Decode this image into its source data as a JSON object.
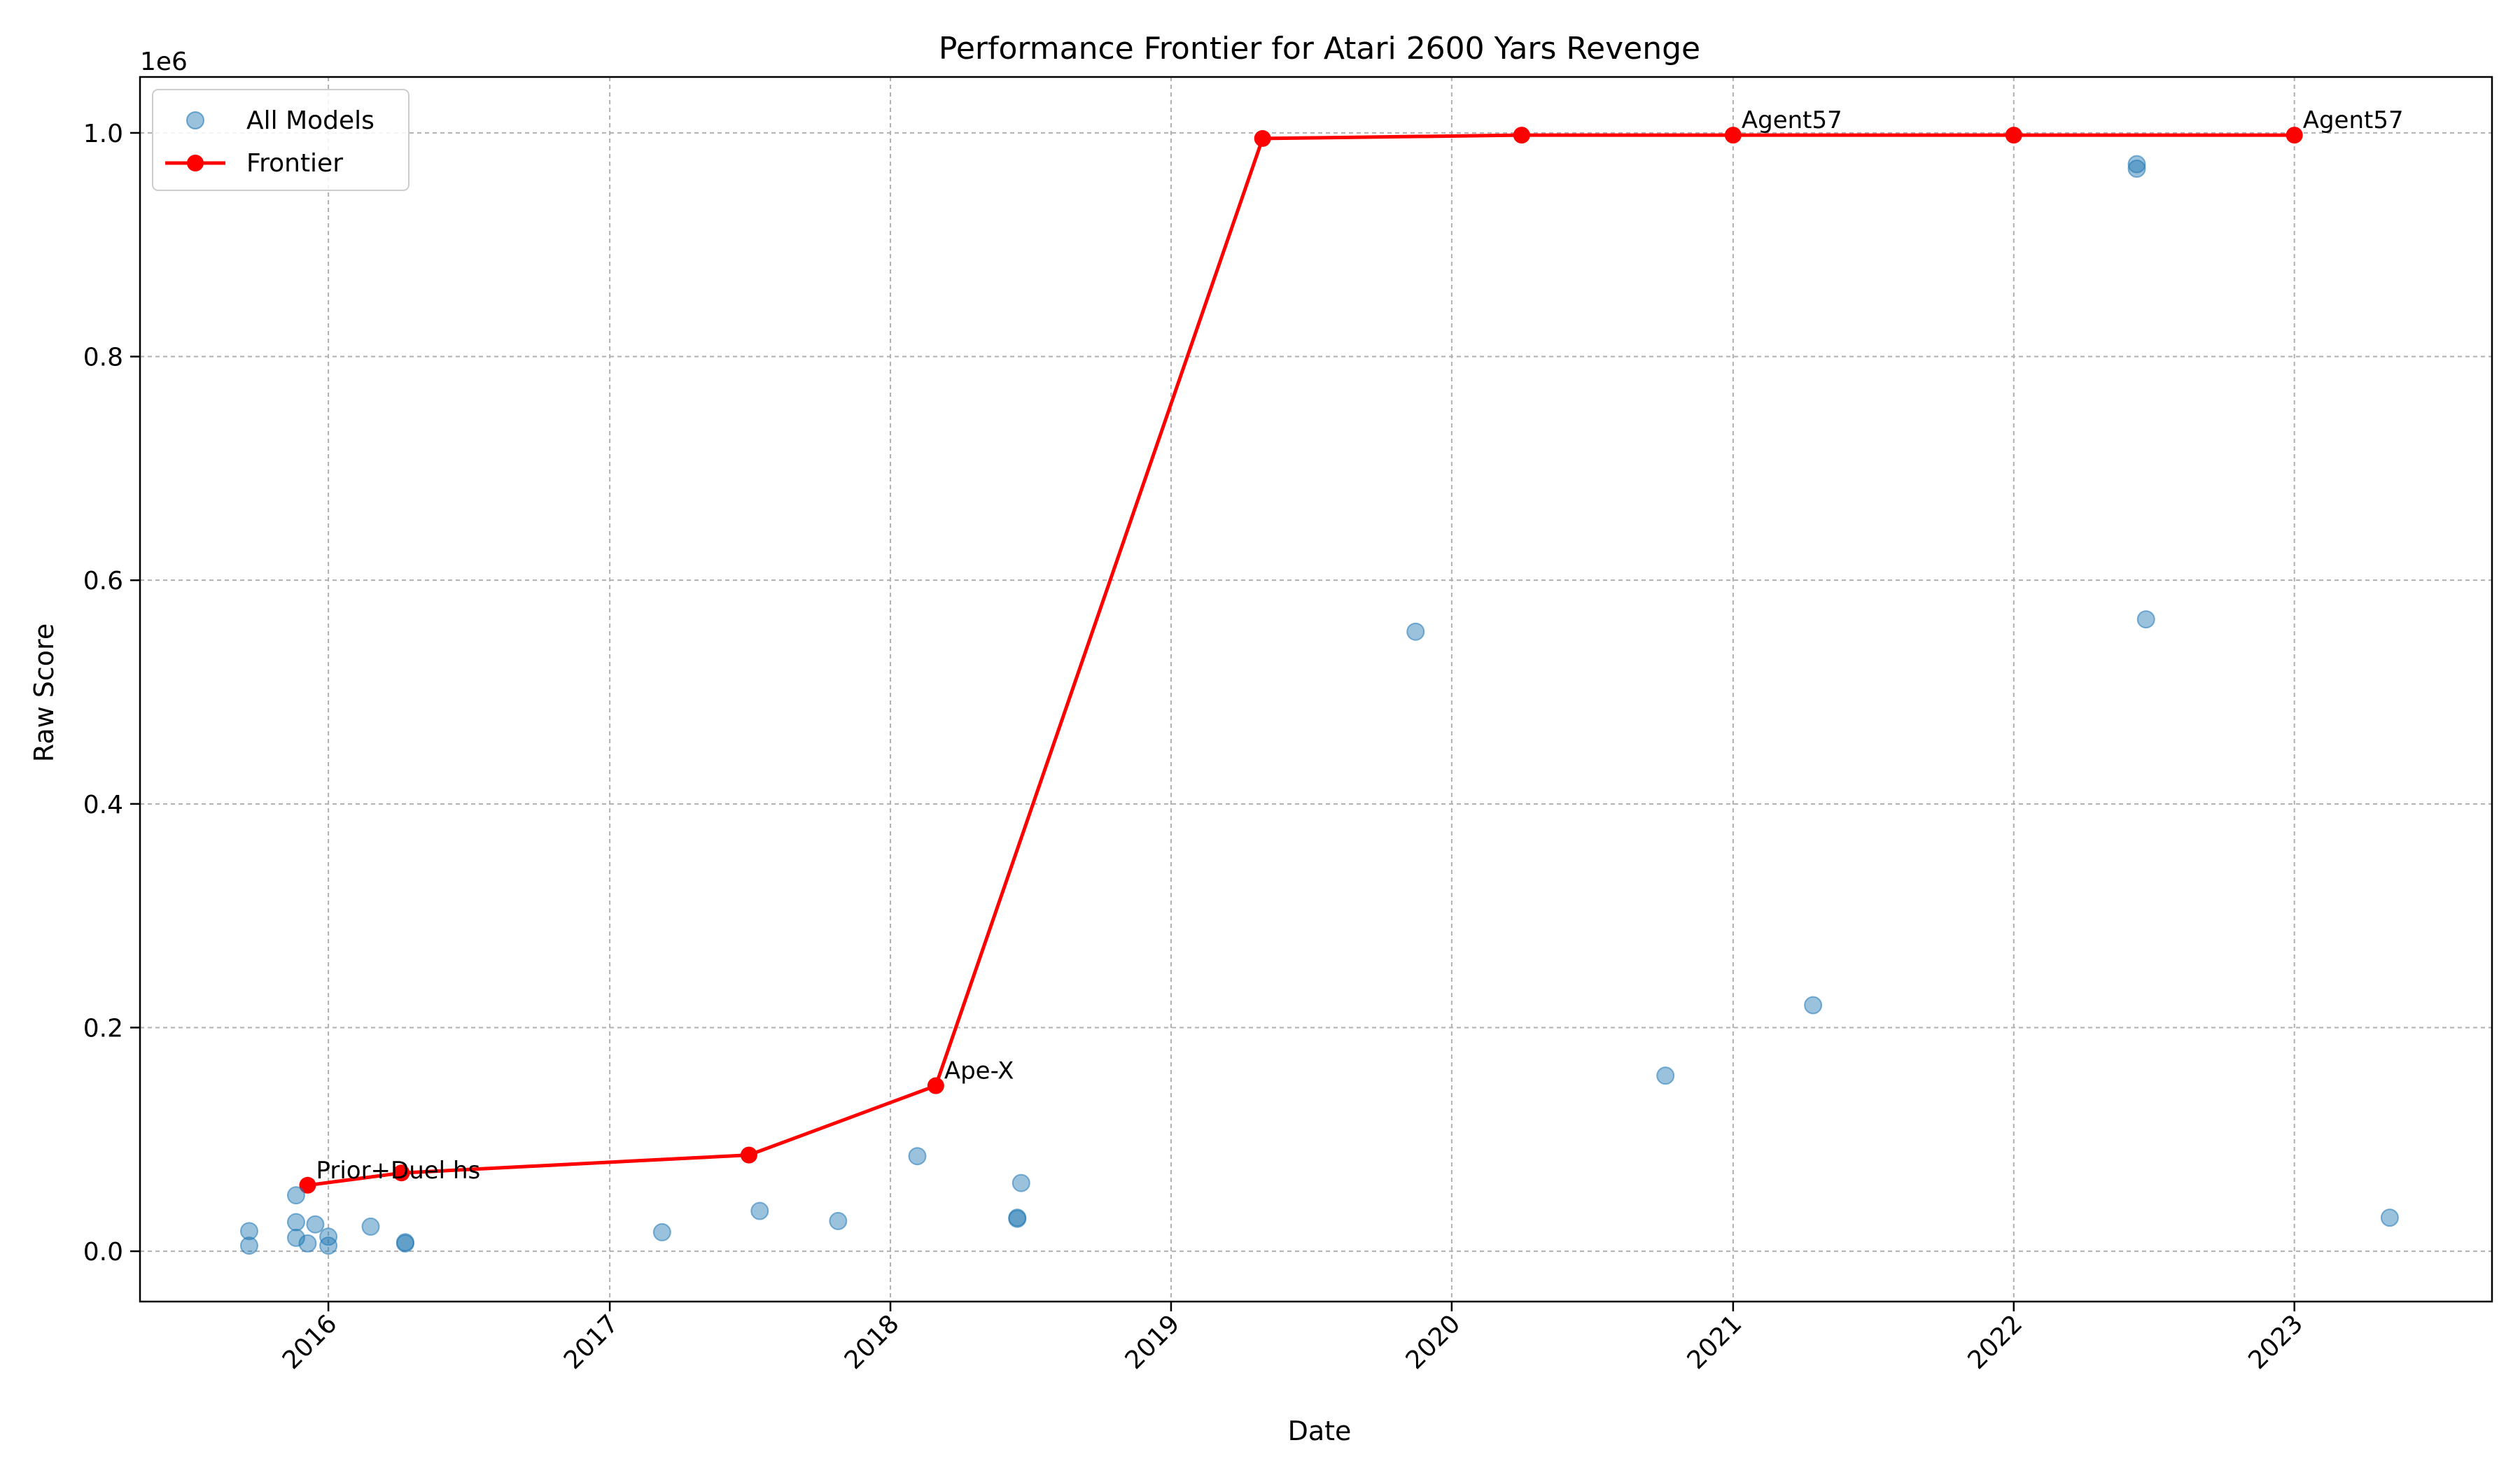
{
  "chart_data": {
    "type": "scatter",
    "title": "Performance Frontier for Atari 2600 Yars Revenge",
    "xlabel": "Date",
    "ylabel": "Raw Score",
    "y_offset_label": "1e6",
    "xlim": [
      "2015-05-01",
      "2023-09-15"
    ],
    "ylim": [
      -45000,
      1050000
    ],
    "x_ticks": [
      "2016-01-01",
      "2017-01-01",
      "2018-01-01",
      "2019-01-01",
      "2020-01-01",
      "2021-01-01",
      "2022-01-01",
      "2023-01-01"
    ],
    "x_tick_labels": [
      "2016",
      "2017",
      "2018",
      "2019",
      "2020",
      "2021",
      "2022",
      "2023"
    ],
    "y_ticks": [
      0,
      200000,
      400000,
      600000,
      800000,
      1000000
    ],
    "y_tick_labels": [
      "0.0",
      "0.2",
      "0.4",
      "0.6",
      "0.8",
      "1.0"
    ],
    "grid": true,
    "legend": "top-left",
    "colors": {
      "scatter": "#1f77b4",
      "frontier": "#ff0000"
    },
    "series": [
      {
        "name": "All Models",
        "kind": "scatter",
        "points": [
          {
            "x": "2015-09-20",
            "y": 18000
          },
          {
            "x": "2015-09-20",
            "y": 5000
          },
          {
            "x": "2015-11-20",
            "y": 50000
          },
          {
            "x": "2015-11-20",
            "y": 26000
          },
          {
            "x": "2015-11-20",
            "y": 12000
          },
          {
            "x": "2015-12-05",
            "y": 7000
          },
          {
            "x": "2015-12-15",
            "y": 24000
          },
          {
            "x": "2016-01-01",
            "y": 13000
          },
          {
            "x": "2016-01-01",
            "y": 5000
          },
          {
            "x": "2016-02-25",
            "y": 22000
          },
          {
            "x": "2016-04-10",
            "y": 8000
          },
          {
            "x": "2016-04-10",
            "y": 7000
          },
          {
            "x": "2017-03-10",
            "y": 17000
          },
          {
            "x": "2017-07-15",
            "y": 36000
          },
          {
            "x": "2017-10-25",
            "y": 27000
          },
          {
            "x": "2018-02-05",
            "y": 85000
          },
          {
            "x": "2018-06-15",
            "y": 29000
          },
          {
            "x": "2018-06-15",
            "y": 30000
          },
          {
            "x": "2018-06-20",
            "y": 61000
          },
          {
            "x": "2019-11-15",
            "y": 554000
          },
          {
            "x": "2020-10-05",
            "y": 157000
          },
          {
            "x": "2021-04-15",
            "y": 220000
          },
          {
            "x": "2022-06-10",
            "y": 972000
          },
          {
            "x": "2022-06-10",
            "y": 968000
          },
          {
            "x": "2022-06-22",
            "y": 565000
          },
          {
            "x": "2023-05-05",
            "y": 30000
          }
        ]
      },
      {
        "name": "Frontier",
        "kind": "line",
        "points": [
          {
            "x": "2015-12-05",
            "y": 59000
          },
          {
            "x": "2016-04-05",
            "y": 70000
          },
          {
            "x": "2017-07-01",
            "y": 86000
          },
          {
            "x": "2018-03-01",
            "y": 148000
          },
          {
            "x": "2019-04-30",
            "y": 995000
          },
          {
            "x": "2020-04-01",
            "y": 998000
          },
          {
            "x": "2021-01-01",
            "y": 998000
          },
          {
            "x": "2022-01-01",
            "y": 998000
          },
          {
            "x": "2023-01-01",
            "y": 998000
          }
        ]
      }
    ],
    "annotations": [
      {
        "text": "Prior+Duel hs",
        "x": "2015-12-05",
        "y": 59000
      },
      {
        "text": "Ape-X",
        "x": "2018-03-01",
        "y": 148000
      },
      {
        "text": "Agent57",
        "x": "2021-01-01",
        "y": 998000
      },
      {
        "text": "Agent57",
        "x": "2023-01-01",
        "y": 998000
      }
    ]
  }
}
